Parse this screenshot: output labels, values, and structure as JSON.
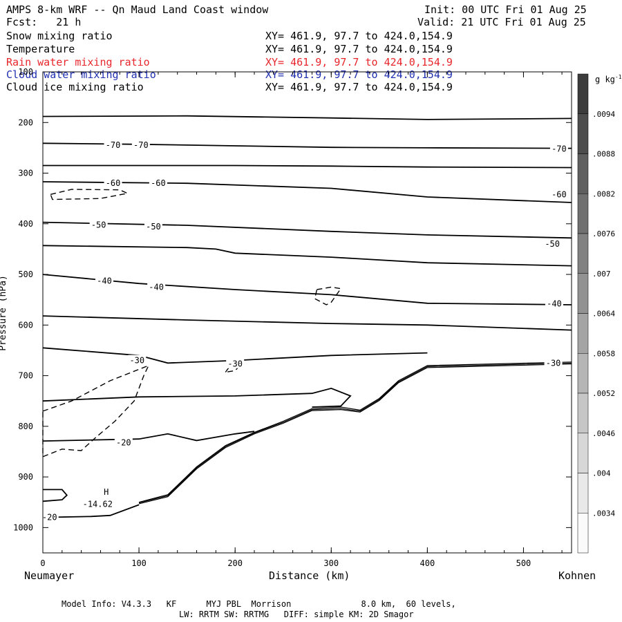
{
  "header": {
    "title": "AMPS 8-km WRF -- Qn Maud Land Coast window",
    "init": "Init: 00 UTC Fri 01 Aug 25",
    "fcst": "Fcst:   21 h",
    "valid": "Valid: 21 UTC Fri 01 Aug 25"
  },
  "legend_rows": [
    {
      "label": "Snow mixing ratio",
      "xy": "XY= 461.9, 97.7 to 424.0,154.9",
      "color": "#000000"
    },
    {
      "label": "Temperature",
      "xy": "XY= 461.9, 97.7 to 424.0,154.9",
      "color": "#000000"
    },
    {
      "label": "Rain water mixing ratio",
      "xy": "XY= 461.9, 97.7 to 424.0,154.9",
      "color": "#e8262b"
    },
    {
      "label": "Cloud water mixing ratio",
      "xy": "XY= 461.9, 97.7 to 424.0,154.9",
      "color": "#1f2fb0"
    },
    {
      "label": "Cloud ice mixing ratio",
      "xy": "XY= 461.9, 97.7 to 424.0,154.9",
      "color": "#000000"
    }
  ],
  "chart_data": {
    "type": "line",
    "xlabel": "Distance (km)",
    "ylabel": "Pressure (hPa)",
    "xlim": [
      0,
      550
    ],
    "ylim": [
      1050,
      100
    ],
    "x_ticks": [
      0,
      100,
      200,
      300,
      400,
      500
    ],
    "y_ticks": [
      100,
      200,
      300,
      400,
      500,
      600,
      700,
      800,
      900,
      1000
    ],
    "x_left_label": "Neumayer",
    "x_right_label": "Kohnen",
    "colorbar": {
      "unit": "g kg",
      "unit_exp": "-1",
      "ticks": [
        ".0094",
        ".0088",
        ".0082",
        ".0076",
        ".007",
        ".0064",
        ".0058",
        ".0052",
        ".0046",
        ".004",
        ".0034"
      ]
    },
    "temperature_isotherms": [
      {
        "points": [
          [
            0,
            188
          ],
          [
            150,
            187
          ],
          [
            300,
            191
          ],
          [
            400,
            194
          ],
          [
            550,
            192
          ]
        ]
      },
      {
        "points": [
          [
            0,
            241
          ],
          [
            100,
            243
          ],
          [
            200,
            246
          ],
          [
            300,
            249
          ],
          [
            400,
            250
          ],
          [
            550,
            251
          ]
        ]
      },
      {
        "points": [
          [
            0,
            285
          ],
          [
            200,
            285
          ],
          [
            300,
            286
          ],
          [
            400,
            288
          ],
          [
            550,
            289
          ]
        ]
      },
      {
        "points": [
          [
            0,
            317
          ],
          [
            150,
            320
          ],
          [
            300,
            330
          ],
          [
            400,
            347
          ],
          [
            550,
            358
          ]
        ]
      },
      {
        "points": [
          [
            0,
            397
          ],
          [
            150,
            403
          ],
          [
            300,
            415
          ],
          [
            400,
            422
          ],
          [
            550,
            428
          ]
        ]
      },
      {
        "points": [
          [
            0,
            443
          ],
          [
            150,
            447
          ],
          [
            180,
            450
          ],
          [
            200,
            458
          ],
          [
            300,
            466
          ],
          [
            400,
            477
          ],
          [
            550,
            483
          ]
        ]
      },
      {
        "points": [
          [
            0,
            500
          ],
          [
            100,
            518
          ],
          [
            200,
            530
          ],
          [
            300,
            540
          ],
          [
            400,
            557
          ],
          [
            550,
            560
          ]
        ]
      },
      {
        "points": [
          [
            0,
            582
          ],
          [
            150,
            590
          ],
          [
            300,
            597
          ],
          [
            400,
            600
          ],
          [
            550,
            610
          ]
        ]
      },
      {
        "points": [
          [
            0,
            645
          ],
          [
            100,
            660
          ],
          [
            130,
            675
          ],
          [
            200,
            670
          ],
          [
            300,
            660
          ],
          [
            400,
            655
          ]
        ]
      },
      {
        "points": [
          [
            0,
            750
          ],
          [
            100,
            742
          ],
          [
            200,
            740
          ],
          [
            280,
            735
          ],
          [
            300,
            725
          ],
          [
            320,
            740
          ],
          [
            310,
            760
          ],
          [
            280,
            762
          ]
        ]
      },
      {
        "points": [
          [
            0,
            829
          ],
          [
            100,
            825
          ],
          [
            130,
            815
          ],
          [
            160,
            828
          ],
          [
            200,
            815
          ],
          [
            220,
            810
          ]
        ]
      },
      {
        "points": [
          [
            0,
            925
          ],
          [
            20,
            925
          ],
          [
            25,
            936
          ],
          [
            20,
            945
          ],
          [
            0,
            948
          ]
        ]
      },
      {
        "points": [
          [
            0,
            980
          ],
          [
            50,
            978
          ],
          [
            70,
            976
          ],
          [
            100,
            955
          ]
        ]
      }
    ],
    "contour_labels": [
      {
        "text": "-70",
        "x": 73,
        "y": 245
      },
      {
        "text": "-70",
        "x": 102,
        "y": 245
      },
      {
        "text": "-70",
        "x": 537,
        "y": 252
      },
      {
        "text": "-60",
        "x": 73,
        "y": 320
      },
      {
        "text": "-60",
        "x": 120,
        "y": 320
      },
      {
        "text": "-60",
        "x": 537,
        "y": 342
      },
      {
        "text": "-50",
        "x": 58,
        "y": 402
      },
      {
        "text": "-50",
        "x": 115,
        "y": 406
      },
      {
        "text": "-50",
        "x": 530,
        "y": 440
      },
      {
        "text": "-40",
        "x": 64,
        "y": 513
      },
      {
        "text": "-40",
        "x": 118,
        "y": 525
      },
      {
        "text": "-40",
        "x": 532,
        "y": 558
      },
      {
        "text": "-30",
        "x": 98,
        "y": 670
      },
      {
        "text": "-30",
        "x": 200,
        "y": 677
      },
      {
        "text": "-30",
        "x": 531,
        "y": 675
      },
      {
        "text": "-20",
        "x": 84,
        "y": 832
      },
      {
        "text": "-20",
        "x": 7,
        "y": 980
      }
    ],
    "snow_dashed_contours": [
      {
        "points": [
          [
            8,
            342
          ],
          [
            30,
            332
          ],
          [
            80,
            333
          ],
          [
            88,
            340
          ],
          [
            60,
            350
          ],
          [
            10,
            352
          ]
        ]
      },
      {
        "points": [
          [
            285,
            530
          ],
          [
            300,
            525
          ],
          [
            310,
            528
          ],
          [
            300,
            555
          ],
          [
            295,
            560
          ],
          [
            283,
            548
          ]
        ]
      },
      {
        "points": [
          [
            0,
            770
          ],
          [
            30,
            750
          ],
          [
            70,
            710
          ],
          [
            110,
            680
          ],
          [
            105,
            700
          ],
          [
            95,
            750
          ],
          [
            75,
            790
          ],
          [
            55,
            822
          ],
          [
            40,
            848
          ],
          [
            20,
            845
          ],
          [
            0,
            860
          ]
        ]
      },
      {
        "points": [
          [
            190,
            693
          ],
          [
            195,
            680
          ],
          [
            205,
            680
          ],
          [
            200,
            690
          ]
        ]
      }
    ],
    "terrain_lines": [
      {
        "points": [
          [
            100,
            950
          ],
          [
            130,
            935
          ],
          [
            160,
            880
          ],
          [
            190,
            838
          ],
          [
            220,
            812
          ],
          [
            250,
            790
          ],
          [
            280,
            765
          ],
          [
            310,
            762
          ],
          [
            330,
            768
          ],
          [
            350,
            745
          ],
          [
            370,
            710
          ],
          [
            400,
            680
          ],
          [
            550,
            673
          ]
        ]
      },
      {
        "points": [
          [
            100,
            951
          ],
          [
            130,
            937
          ],
          [
            160,
            882
          ],
          [
            190,
            840
          ],
          [
            220,
            813
          ],
          [
            250,
            792
          ],
          [
            280,
            767
          ],
          [
            310,
            765
          ],
          [
            330,
            770
          ],
          [
            350,
            747
          ],
          [
            370,
            712
          ],
          [
            400,
            682
          ],
          [
            550,
            675
          ]
        ]
      },
      {
        "points": [
          [
            100,
            953
          ],
          [
            130,
            939
          ],
          [
            160,
            884
          ],
          [
            190,
            842
          ],
          [
            220,
            815
          ],
          [
            250,
            794
          ],
          [
            280,
            769
          ],
          [
            310,
            767
          ],
          [
            330,
            772
          ],
          [
            350,
            749
          ],
          [
            370,
            714
          ],
          [
            400,
            684
          ],
          [
            550,
            677
          ]
        ]
      }
    ],
    "annotations": [
      {
        "text": "H",
        "x": 66,
        "y": 930
      },
      {
        "text": "-14.62",
        "x": 57,
        "y": 954
      }
    ]
  },
  "footer": {
    "line1": "Model Info: V4.3.3   KF      MYJ PBL  Morrison              8.0 km,  60 levels,",
    "line2": "LW: RRTM SW: RRTMG   DIFF: simple KM: 2D Smagor"
  }
}
